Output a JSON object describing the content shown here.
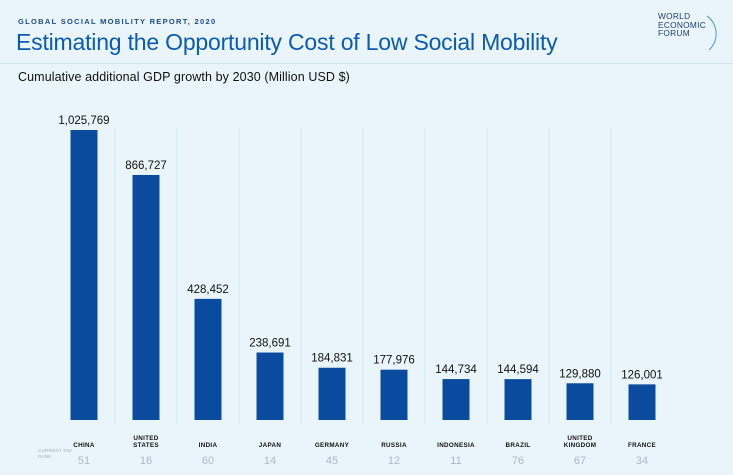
{
  "header": {
    "eyebrow": "GLOBAL SOCIAL MOBILITY REPORT, 2020",
    "title": "Estimating the Opportunity Cost of Low Social Mobility",
    "logo_lines": [
      "WORLD",
      "ECONOMIC",
      "FORUM"
    ]
  },
  "footnote": "CURRENT SMI RANK",
  "colors": {
    "bar": "#0a4b9e",
    "background": "#e9f5fb",
    "title": "#0b5bb0",
    "rank": "#a9bac7"
  },
  "chart_data": {
    "type": "bar",
    "title": "Cumulative additional GDP growth by 2030 (Million USD $)",
    "categories": [
      "CHINA",
      "UNITED STATES",
      "INDIA",
      "JAPAN",
      "GERMANY",
      "RUSSIA",
      "INDONESIA",
      "BRAZIL",
      "UNITED KINGDOM",
      "FRANCE"
    ],
    "category_lines": [
      [
        "CHINA"
      ],
      [
        "UNITED",
        "STATES"
      ],
      [
        "INDIA"
      ],
      [
        "JAPAN"
      ],
      [
        "GERMANY"
      ],
      [
        "RUSSIA"
      ],
      [
        "INDONESIA"
      ],
      [
        "BRAZIL"
      ],
      [
        "UNITED",
        "KINGDOM"
      ],
      [
        "FRANCE"
      ]
    ],
    "values": [
      1025769,
      866727,
      428452,
      238691,
      184831,
      177976,
      144734,
      144594,
      129880,
      126001
    ],
    "value_labels": [
      "1,025,769",
      "866,727",
      "428,452",
      "238,691",
      "184,831",
      "177,976",
      "144,734",
      "144,594",
      "129,880",
      "126,001"
    ],
    "ranks": [
      "51",
      "16",
      "60",
      "14",
      "45",
      "12",
      "11",
      "76",
      "67",
      "34"
    ],
    "ylim": [
      0,
      1025769
    ],
    "grid": false,
    "legend": "none"
  }
}
